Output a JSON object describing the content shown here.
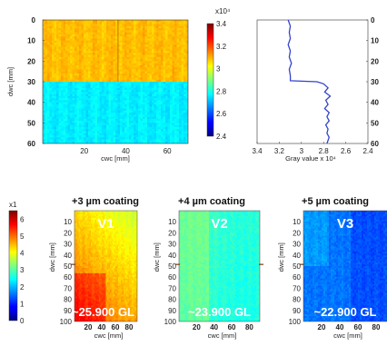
{
  "chart_data": [
    {
      "type": "heatmap",
      "id": "top-map",
      "xlabel": "cwc [mm]",
      "ylabel": "dwc [mm]",
      "xticks": [
        "20",
        "40",
        "60"
      ],
      "yticks": [
        "0",
        "10",
        "20",
        "30",
        "40",
        "50",
        "60"
      ],
      "colorbar": {
        "exponent": "x10⁴",
        "ticks": [
          "3.4",
          "3.2",
          "3",
          "2.8",
          "2.6",
          "2.4"
        ],
        "range": [
          2.4,
          3.4
        ]
      },
      "regions": [
        {
          "rows": [
            0,
            30
          ],
          "value": 3.09
        },
        {
          "rows": [
            30,
            60
          ],
          "value": 2.76
        }
      ]
    },
    {
      "type": "line",
      "id": "profile",
      "xlabel": "Gray value  x 10⁴",
      "xticks": [
        "3.4",
        "3.2",
        "3",
        "2.8",
        "2.6",
        "2.4"
      ],
      "yticks": [
        "0",
        "10",
        "20",
        "30",
        "40",
        "50",
        "60"
      ],
      "xlim": [
        3.4,
        2.4
      ],
      "ylim": [
        0,
        60
      ],
      "points": [
        [
          3.12,
          0
        ],
        [
          3.1,
          3
        ],
        [
          3.11,
          6
        ],
        [
          3.1,
          9
        ],
        [
          3.12,
          12
        ],
        [
          3.1,
          15
        ],
        [
          3.11,
          18
        ],
        [
          3.09,
          21
        ],
        [
          3.11,
          24
        ],
        [
          3.1,
          27
        ],
        [
          3.1,
          29.5
        ],
        [
          2.86,
          30
        ],
        [
          2.8,
          31
        ],
        [
          2.76,
          33
        ],
        [
          2.79,
          35
        ],
        [
          2.74,
          37
        ],
        [
          2.78,
          39
        ],
        [
          2.76,
          41
        ],
        [
          2.79,
          43
        ],
        [
          2.75,
          45
        ],
        [
          2.77,
          47
        ],
        [
          2.75,
          49
        ],
        [
          2.78,
          51
        ],
        [
          2.76,
          53
        ],
        [
          2.77,
          55
        ],
        [
          2.75,
          57
        ],
        [
          2.77,
          60
        ]
      ]
    },
    {
      "type": "heatmap",
      "id": "maps-row",
      "colorbar": {
        "exponent": "x1",
        "ticks": [
          "6",
          "5",
          "4",
          "3",
          "2",
          "1",
          "0"
        ],
        "range": [
          0,
          6.5
        ]
      },
      "panels": [
        {
          "title": "+3 µm coating",
          "label": "V1",
          "gl": "~25.900 GL",
          "base": 4.3
        },
        {
          "title": "+4 µm coating",
          "label": "V2",
          "gl": "~23.900 GL",
          "base": 2.75
        },
        {
          "title": "+5 µm coating",
          "label": "V3",
          "gl": "~22.900 GL",
          "base": 1.55
        }
      ],
      "xlabel": "cwc [mm]",
      "ylabel": "dwc [mm]",
      "xticks": [
        "20",
        "40",
        "60",
        "80"
      ],
      "yticks": [
        "10",
        "20",
        "30",
        "40",
        "50",
        "60",
        "70",
        "80",
        "90",
        "100"
      ]
    }
  ]
}
